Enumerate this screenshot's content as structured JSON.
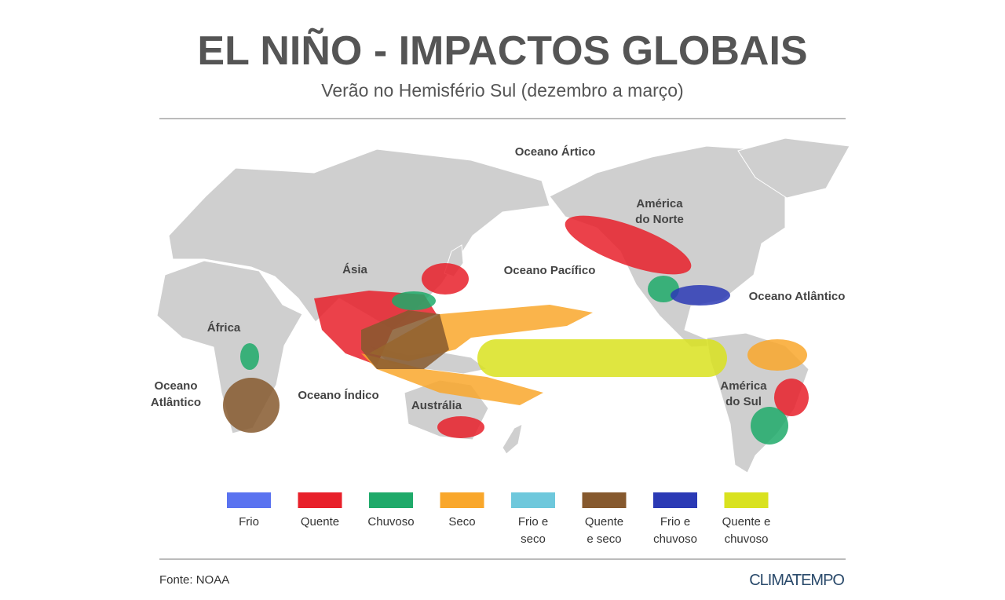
{
  "header": {
    "title": "EL NIÑO - IMPACTOS GLOBAIS",
    "subtitle": "Verão no Hemisfério Sul (dezembro a março)"
  },
  "map": {
    "labels": [
      {
        "lines": [
          "Oceano Ártico"
        ]
      },
      {
        "lines": [
          "América",
          "do Norte"
        ]
      },
      {
        "lines": [
          "Ásia"
        ]
      },
      {
        "lines": [
          "Oceano Pacífico"
        ]
      },
      {
        "lines": [
          "Oceano Atlântico"
        ]
      },
      {
        "lines": [
          "África"
        ]
      },
      {
        "lines": [
          "Oceano",
          "Atlântico"
        ]
      },
      {
        "lines": [
          "Oceano Índico"
        ]
      },
      {
        "lines": [
          "Austrália"
        ]
      },
      {
        "lines": [
          "América",
          "do Sul"
        ]
      }
    ]
  },
  "legend": {
    "items": [
      {
        "lines": [
          "Frio"
        ],
        "color": "#5a73f0"
      },
      {
        "lines": [
          "Quente"
        ],
        "color": "#e8202a"
      },
      {
        "lines": [
          "Chuvoso"
        ],
        "color": "#1faa6a"
      },
      {
        "lines": [
          "Seco"
        ],
        "color": "#f9a72b"
      },
      {
        "lines": [
          "Frio e",
          "seco"
        ],
        "color": "#6ec8dc"
      },
      {
        "lines": [
          "Quente",
          "e seco"
        ],
        "color": "#86592e"
      },
      {
        "lines": [
          "Frio e",
          "chuvoso"
        ],
        "color": "#2b3ab5"
      },
      {
        "lines": [
          "Quente e",
          "chuvoso"
        ],
        "color": "#d9e21f"
      }
    ]
  },
  "footer": {
    "source": "Fonte: NOAA",
    "brand": "CLIMATEMPO"
  }
}
